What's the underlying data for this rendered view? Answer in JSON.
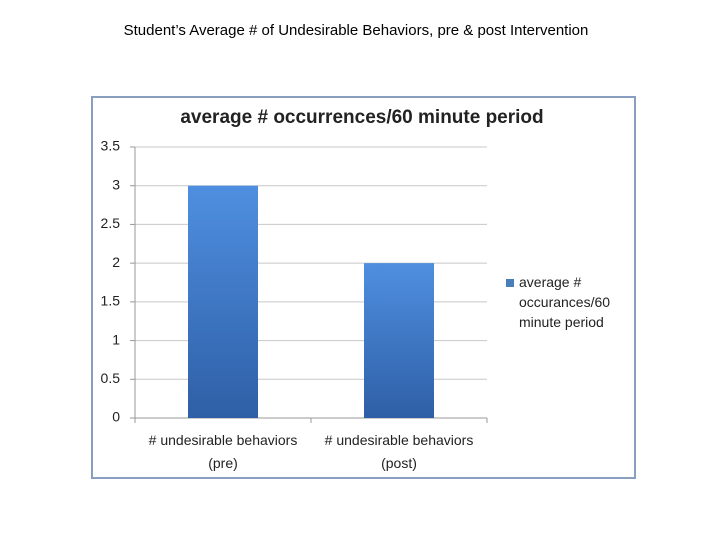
{
  "page_title": "Student’s Average # of Undesirable Behaviors, pre & post Intervention",
  "chart_data": {
    "type": "bar",
    "title": "average # occurrences/60 minute period",
    "categories": [
      "# undesirable behaviors (pre)",
      "# undesirable behaviors (post)"
    ],
    "series": [
      {
        "name": "average # occurances/60 minute period",
        "color": "#4a7ebb",
        "values": [
          3,
          2
        ]
      }
    ],
    "ylim": [
      0,
      3.5
    ],
    "yticks": [
      0,
      0.5,
      1,
      1.5,
      2,
      2.5,
      3,
      3.5
    ],
    "grid": true,
    "legend": "right"
  }
}
